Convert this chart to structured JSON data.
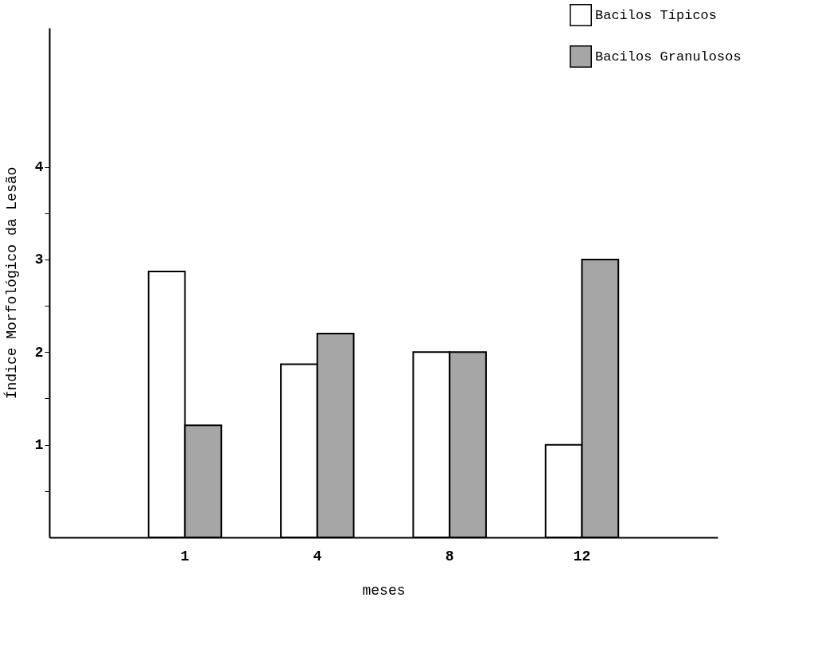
{
  "chart_data": {
    "type": "bar",
    "xlabel": "meses",
    "ylabel": "Índice Morfológico da Lesão",
    "categories": [
      "1",
      "4",
      "8",
      "12"
    ],
    "series": [
      {
        "name": "Bacilos Típicos",
        "color": "#ffffff",
        "values": [
          2.87,
          1.87,
          2.0,
          1.0
        ]
      },
      {
        "name": "Bacilos Granulosos",
        "color": "#a6a6a6",
        "values": [
          1.21,
          2.2,
          2.0,
          3.0
        ]
      }
    ],
    "ylim": [
      0,
      5.5
    ],
    "yticks": [
      {
        "value": 0.5,
        "label": null
      },
      1,
      {
        "value": 1.5,
        "label": null
      },
      2,
      {
        "value": 2.5,
        "label": null
      },
      3,
      {
        "value": 3.5,
        "label": null
      },
      4
    ],
    "legend": "top right",
    "grid": false
  }
}
